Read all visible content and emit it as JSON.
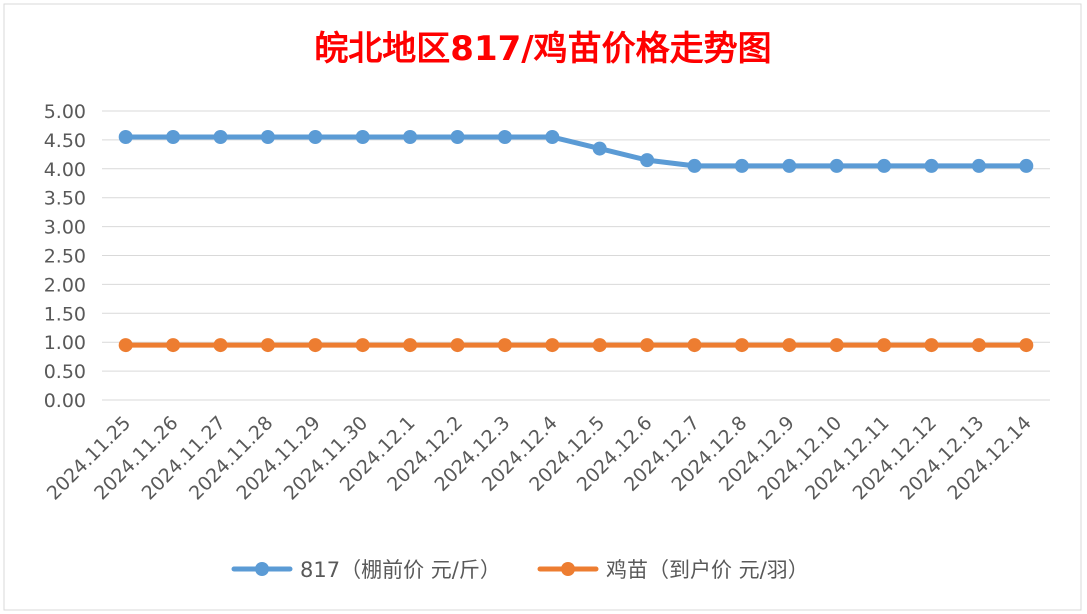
{
  "chart_data": {
    "type": "line",
    "title": "皖北地区817/鸡苗价格走势图",
    "xlabel": "",
    "ylabel": "",
    "ylim": [
      0,
      5
    ],
    "y_ticks": [
      "0.00",
      "0.50",
      "1.00",
      "1.50",
      "2.00",
      "2.50",
      "3.00",
      "3.50",
      "4.00",
      "4.50",
      "5.00"
    ],
    "grid": true,
    "legend_position": "bottom",
    "categories": [
      "2024.11.25",
      "2024.11.26",
      "2024.11.27",
      "2024.11.28",
      "2024.11.29",
      "2024.11.30",
      "2024.12.1",
      "2024.12.2",
      "2024.12.3",
      "2024.12.4",
      "2024.12.5",
      "2024.12.6",
      "2024.12.7",
      "2024.12.8",
      "2024.12.9",
      "2024.12.10",
      "2024.12.11",
      "2024.12.12",
      "2024.12.13",
      "2024.12.14"
    ],
    "series": [
      {
        "name": "817（棚前价 元/斤）",
        "color": "#5b9bd5",
        "values": [
          4.55,
          4.55,
          4.55,
          4.55,
          4.55,
          4.55,
          4.55,
          4.55,
          4.55,
          4.55,
          4.35,
          4.15,
          4.05,
          4.05,
          4.05,
          4.05,
          4.05,
          4.05,
          4.05,
          4.05
        ]
      },
      {
        "name": "鸡苗（到户价 元/羽）",
        "color": "#ed7d31",
        "values": [
          0.95,
          0.95,
          0.95,
          0.95,
          0.95,
          0.95,
          0.95,
          0.95,
          0.95,
          0.95,
          0.95,
          0.95,
          0.95,
          0.95,
          0.95,
          0.95,
          0.95,
          0.95,
          0.95,
          0.95
        ]
      }
    ],
    "title_color": "#ff0000"
  }
}
